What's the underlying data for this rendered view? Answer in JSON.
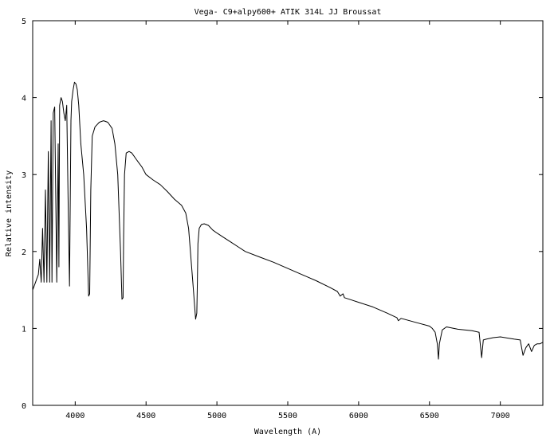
{
  "chart_data": {
    "type": "line",
    "title": "Vega- C9+alpy600+ ATIK 314L JJ Broussat",
    "xlabel": "Wavelength (A)",
    "ylabel": "Relative intensity",
    "xlim": [
      3700,
      7300
    ],
    "ylim": [
      0,
      5
    ],
    "xticks": [
      4000,
      4500,
      5000,
      5500,
      6000,
      6500,
      7000
    ],
    "yticks": [
      0,
      1,
      2,
      3,
      4,
      5
    ],
    "grid": false,
    "legend": "none",
    "series": [
      {
        "color": "#000000",
        "x": [
          3700,
          3710,
          3720,
          3730,
          3740,
          3750,
          3760,
          3770,
          3780,
          3790,
          3800,
          3810,
          3820,
          3830,
          3836,
          3845,
          3855,
          3870,
          3880,
          3885,
          3890,
          3900,
          3910,
          3920,
          3930,
          3940,
          3950,
          3960,
          3970,
          3975,
          3985,
          3995,
          4005,
          4015,
          4025,
          4040,
          4060,
          4080,
          4095,
          4102,
          4110,
          4120,
          4140,
          4170,
          4200,
          4230,
          4260,
          4280,
          4300,
          4320,
          4330,
          4338,
          4342,
          4348,
          4360,
          4380,
          4400,
          4430,
          4450,
          4470,
          4500,
          4550,
          4600,
          4650,
          4700,
          4750,
          4780,
          4800,
          4830,
          4850,
          4858,
          4862,
          4866,
          4875,
          4890,
          4910,
          4940,
          4970,
          5000,
          5050,
          5100,
          5150,
          5200,
          5300,
          5400,
          5500,
          5600,
          5700,
          5800,
          5850,
          5870,
          5890,
          5900,
          5950,
          6000,
          6100,
          6200,
          6270,
          6280,
          6300,
          6400,
          6500,
          6520,
          6540,
          6555,
          6563,
          6570,
          6590,
          6620,
          6700,
          6800,
          6850,
          6868,
          6880,
          6900,
          6950,
          7000,
          7100,
          7140,
          7160,
          7180,
          7200,
          7220,
          7240,
          7260,
          7280,
          7300
        ],
        "y": [
          1.5,
          1.55,
          1.6,
          1.65,
          1.7,
          1.9,
          1.6,
          2.3,
          1.6,
          2.8,
          1.6,
          3.3,
          1.6,
          3.7,
          1.6,
          3.8,
          3.88,
          1.6,
          3.4,
          1.8,
          3.9,
          4.0,
          3.95,
          3.8,
          3.7,
          3.9,
          2.7,
          1.55,
          3.7,
          3.95,
          4.1,
          4.2,
          4.18,
          4.1,
          3.9,
          3.4,
          3.0,
          2.3,
          1.42,
          1.45,
          2.8,
          3.5,
          3.62,
          3.68,
          3.7,
          3.68,
          3.6,
          3.4,
          3.0,
          2.0,
          1.38,
          1.4,
          2.2,
          3.0,
          3.28,
          3.3,
          3.28,
          3.2,
          3.15,
          3.1,
          3.0,
          2.93,
          2.87,
          2.78,
          2.68,
          2.6,
          2.5,
          2.3,
          1.6,
          1.12,
          1.2,
          1.6,
          2.1,
          2.3,
          2.35,
          2.36,
          2.34,
          2.28,
          2.24,
          2.18,
          2.12,
          2.06,
          2.0,
          1.93,
          1.86,
          1.78,
          1.7,
          1.62,
          1.53,
          1.48,
          1.42,
          1.45,
          1.4,
          1.37,
          1.34,
          1.28,
          1.2,
          1.14,
          1.1,
          1.13,
          1.08,
          1.03,
          1.0,
          0.95,
          0.8,
          0.6,
          0.8,
          0.98,
          1.02,
          0.99,
          0.97,
          0.95,
          0.62,
          0.85,
          0.86,
          0.88,
          0.89,
          0.86,
          0.85,
          0.65,
          0.75,
          0.8,
          0.7,
          0.78,
          0.8,
          0.8,
          0.82
        ]
      }
    ]
  }
}
